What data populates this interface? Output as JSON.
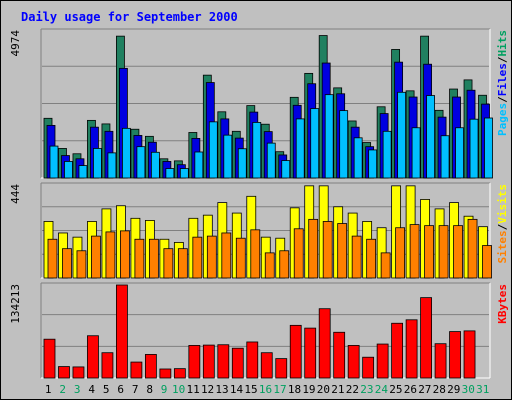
{
  "chart_data": {
    "type": "bar",
    "title": "Daily usage for September 2000",
    "categories": [
      "1",
      "2",
      "3",
      "4",
      "5",
      "6",
      "7",
      "8",
      "9",
      "10",
      "11",
      "12",
      "13",
      "14",
      "15",
      "16",
      "17",
      "18",
      "19",
      "20",
      "21",
      "22",
      "23",
      "24",
      "25",
      "26",
      "27",
      "28",
      "29",
      "30",
      "31"
    ],
    "weekend_days": [
      2,
      3,
      9,
      10,
      16,
      17,
      23,
      24,
      30,
      31
    ],
    "panels": [
      {
        "ylabel_parts": [
          "Pages",
          "Files",
          "Hits"
        ],
        "ylabel_colors": [
          "#00c0ff",
          "#0000ff",
          "#00a060"
        ],
        "ymax": 4974,
        "ymax_label": "4974",
        "series": [
          {
            "name": "Hits",
            "color": "#208060",
            "values": [
              2020,
              1000,
              820,
              1950,
              1830,
              4800,
              1650,
              1410,
              650,
              580,
              1540,
              3480,
              2240,
              1580,
              2450,
              1820,
              890,
              2730,
              3540,
              4820,
              3050,
              1930,
              1200,
              2410,
              4350,
              2950,
              4800,
              2290,
              3010,
              3320,
              2800
            ]
          },
          {
            "name": "Files",
            "color": "#0000e0",
            "values": [
              1780,
              760,
              650,
              1720,
              1580,
              3710,
              1440,
              1210,
              560,
              450,
              1340,
              3230,
              2000,
              1350,
              2230,
              1570,
              780,
              2460,
              3190,
              3890,
              2850,
              1720,
              1060,
              2180,
              3920,
              2740,
              3850,
              2060,
              2740,
              2970,
              2500
            ]
          },
          {
            "name": "Pages",
            "color": "#00c0ff",
            "values": [
              1080,
              560,
              420,
              1000,
              850,
              1680,
              1060,
              870,
              320,
              320,
              880,
              1900,
              1450,
              990,
              1880,
              1180,
              590,
              2000,
              2350,
              2820,
              2280,
              1360,
              950,
              1580,
              2900,
              1700,
              2790,
              1430,
              1700,
              1990,
              2030
            ]
          }
        ]
      },
      {
        "ylabel_parts": [
          "Sites",
          "Visits"
        ],
        "ylabel_colors": [
          "#ff8000",
          "#ffff00"
        ],
        "ymax": 444,
        "ymax_label": "444",
        "series": [
          {
            "name": "Visits",
            "color": "#ffff00",
            "values": [
              270,
              215,
              195,
              270,
              330,
              345,
              285,
              275,
              185,
              170,
              285,
              300,
              360,
              310,
              390,
              195,
              190,
              335,
              440,
              440,
              340,
              310,
              270,
              240,
              440,
              440,
              375,
              330,
              360,
              295,
              245
            ]
          },
          {
            "name": "Sites",
            "color": "#ff8000",
            "values": [
              185,
              140,
              130,
              200,
              220,
              225,
              185,
              185,
              140,
              140,
              195,
              200,
              215,
              190,
              230,
              120,
              130,
              235,
              280,
              270,
              260,
              200,
              185,
              120,
              240,
              255,
              250,
              250,
              250,
              280,
              155
            ]
          }
        ]
      },
      {
        "ylabel_parts": [
          "KBytes"
        ],
        "ylabel_colors": [
          "#ff0000"
        ],
        "ymax": 134213,
        "ymax_label": "134213",
        "series": [
          {
            "name": "KBytes",
            "color": "#ff0000",
            "values": [
              56000,
              16500,
              16000,
              61000,
              36500,
              134213,
              23000,
              34000,
              13000,
              13500,
              47000,
              47500,
              48000,
              43000,
              52000,
              36500,
              28000,
              76000,
              72000,
              100000,
              66000,
              47000,
              30000,
              49000,
              79000,
              84000,
              116000,
              49500,
              67000,
              68000,
              0
            ]
          }
        ]
      }
    ]
  }
}
